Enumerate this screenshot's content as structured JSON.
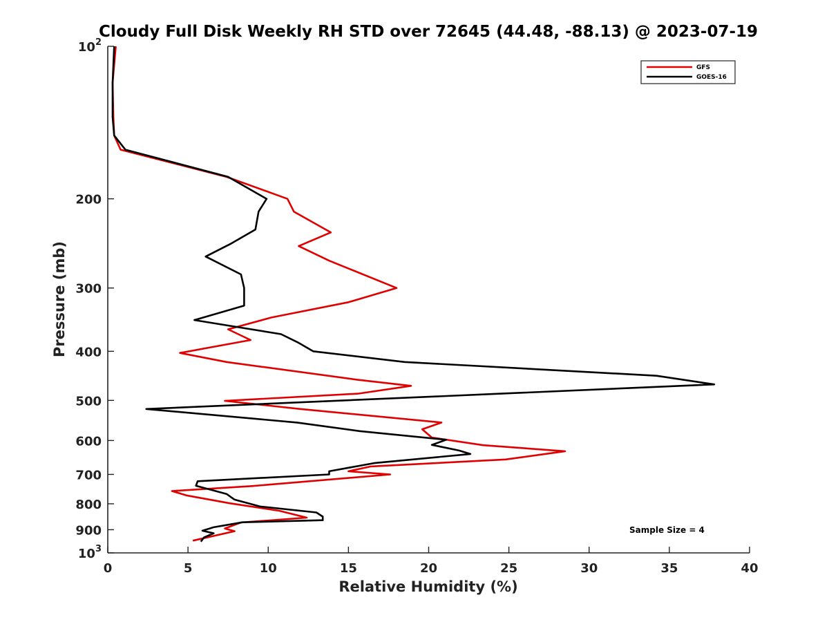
{
  "chart_data": {
    "type": "line",
    "title": "Cloudy Full Disk Weekly RH STD over 72645 (44.48, -88.13) @ 2023-07-19",
    "xlabel": "Relative Humidity (%)",
    "ylabel": "Pressure (mb)",
    "xlim": [
      0,
      40
    ],
    "ylim": [
      100,
      1000
    ],
    "y_scale": "log",
    "y_reversed": true,
    "x_ticks": [
      {
        "value": 0,
        "label": "0"
      },
      {
        "value": 5,
        "label": "5"
      },
      {
        "value": 10,
        "label": "10"
      },
      {
        "value": 15,
        "label": "15"
      },
      {
        "value": 20,
        "label": "20"
      },
      {
        "value": 25,
        "label": "25"
      },
      {
        "value": 30,
        "label": "30"
      },
      {
        "value": 35,
        "label": "35"
      },
      {
        "value": 40,
        "label": "40"
      }
    ],
    "y_ticks": [
      {
        "value": 100,
        "base": "10",
        "exp": "2"
      },
      {
        "value": 200,
        "label": "200"
      },
      {
        "value": 300,
        "label": "300"
      },
      {
        "value": 400,
        "label": "400"
      },
      {
        "value": 500,
        "label": "500"
      },
      {
        "value": 600,
        "label": "600"
      },
      {
        "value": 700,
        "label": "700"
      },
      {
        "value": 800,
        "label": "800"
      },
      {
        "value": 900,
        "label": "900"
      },
      {
        "value": 1000,
        "base": "10",
        "exp": "3"
      }
    ],
    "grid": false,
    "legend_position": "top-right",
    "annotation": "Sample Size = 4",
    "series": [
      {
        "name": "GFS",
        "color": "#e00000",
        "points": [
          [
            0.5,
            100
          ],
          [
            0.3,
            118
          ],
          [
            0.35,
            138
          ],
          [
            0.4,
            150
          ],
          [
            0.8,
            160
          ],
          [
            7.4,
            181
          ],
          [
            11.2,
            200
          ],
          [
            11.6,
            212
          ],
          [
            13.9,
            233
          ],
          [
            11.9,
            248
          ],
          [
            13.8,
            265
          ],
          [
            18.0,
            300
          ],
          [
            15.0,
            320
          ],
          [
            10.2,
            343
          ],
          [
            7.5,
            362
          ],
          [
            8.9,
            380
          ],
          [
            4.5,
            403
          ],
          [
            7.4,
            420
          ],
          [
            15.5,
            455
          ],
          [
            18.9,
            468
          ],
          [
            15.6,
            485
          ],
          [
            7.3,
            501
          ],
          [
            12.0,
            520
          ],
          [
            20.8,
            553
          ],
          [
            19.6,
            570
          ],
          [
            20.2,
            592
          ],
          [
            23.4,
            613
          ],
          [
            28.5,
            630
          ],
          [
            24.8,
            654
          ],
          [
            16.4,
            675
          ],
          [
            15.0,
            690
          ],
          [
            17.6,
            700
          ],
          [
            9.0,
            738
          ],
          [
            4.0,
            755
          ],
          [
            4.9,
            770
          ],
          [
            7.6,
            798
          ],
          [
            10.7,
            826
          ],
          [
            12.4,
            852
          ],
          [
            8.3,
            871
          ],
          [
            7.3,
            895
          ],
          [
            7.9,
            906
          ],
          [
            5.3,
            946
          ]
        ]
      },
      {
        "name": "GOES-16",
        "color": "#000000",
        "points": [
          [
            0.4,
            100
          ],
          [
            0.3,
            118
          ],
          [
            0.3,
            138
          ],
          [
            0.4,
            150
          ],
          [
            1.1,
            160
          ],
          [
            7.5,
            181
          ],
          [
            9.9,
            200
          ],
          [
            9.4,
            212
          ],
          [
            9.2,
            230
          ],
          [
            7.7,
            245
          ],
          [
            6.1,
            260
          ],
          [
            8.3,
            282
          ],
          [
            8.5,
            300
          ],
          [
            8.5,
            325
          ],
          [
            5.4,
            347
          ],
          [
            10.8,
            370
          ],
          [
            11.9,
            385
          ],
          [
            12.8,
            400
          ],
          [
            18.5,
            420
          ],
          [
            34.2,
            447
          ],
          [
            37.8,
            465
          ],
          [
            24.5,
            485
          ],
          [
            2.4,
            520
          ],
          [
            11.8,
            553
          ],
          [
            15.7,
            575
          ],
          [
            21.1,
            598
          ],
          [
            20.2,
            612
          ],
          [
            21.9,
            628
          ],
          [
            22.6,
            638
          ],
          [
            16.6,
            665
          ],
          [
            13.8,
            690
          ],
          [
            13.8,
            700
          ],
          [
            5.6,
            722
          ],
          [
            5.5,
            737
          ],
          [
            7.4,
            765
          ],
          [
            7.9,
            785
          ],
          [
            9.5,
            810
          ],
          [
            13.0,
            832
          ],
          [
            13.4,
            848
          ],
          [
            13.4,
            862
          ],
          [
            8.4,
            870
          ],
          [
            6.6,
            890
          ],
          [
            5.9,
            904
          ],
          [
            6.6,
            915
          ],
          [
            6.0,
            932
          ],
          [
            5.8,
            950
          ]
        ]
      }
    ]
  }
}
